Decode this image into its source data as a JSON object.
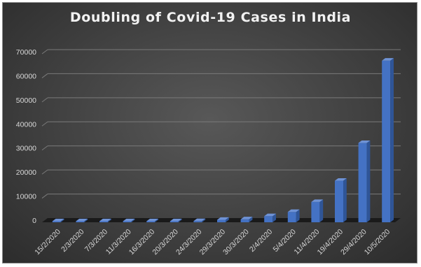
{
  "chart_data": {
    "type": "bar",
    "title": "Doubling of Covid-19 Cases in India",
    "xlabel": "",
    "ylabel": "",
    "ylim": [
      0,
      70000
    ],
    "yticks": [
      0,
      10000,
      20000,
      30000,
      40000,
      50000,
      60000,
      70000
    ],
    "grid": true,
    "legend": "none",
    "bar_color": "#4472c4",
    "categories": [
      "15/2/2020",
      "2/3/2020",
      "7/3/2020",
      "11/3/2020",
      "16/3/2020",
      "20/3/2020",
      "24/3/2020",
      "29/3/2020",
      "30/3/2020",
      "2/4/2020",
      "5/4/2020",
      "11/4/2020",
      "19/4/2020",
      "29/4/2020",
      "10/5/2020"
    ],
    "values": [
      3,
      6,
      31,
      62,
      114,
      236,
      519,
      1024,
      1251,
      2543,
      4288,
      8447,
      17265,
      32950,
      67161
    ]
  }
}
